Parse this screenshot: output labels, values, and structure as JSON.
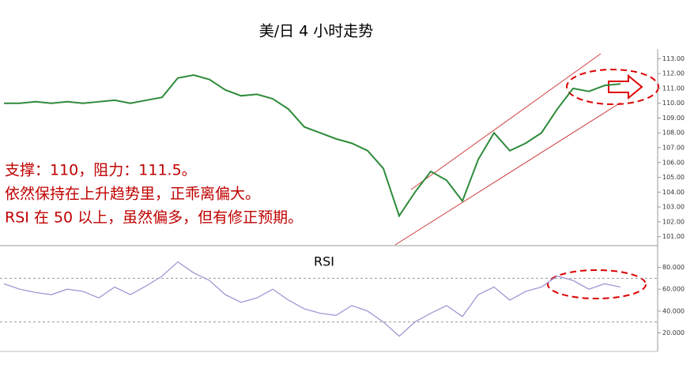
{
  "chart_data": [
    {
      "type": "line",
      "title": "美/日 4 小时走势",
      "annotations": [
        "支撑：110，阻力：111.5。",
        "依然保持在上升趋势里，正乖离偏大。",
        "RSI 在 50 以上，虽然偏多，但有修正预期。"
      ],
      "values": [
        110.0,
        110.0,
        110.1,
        110.0,
        110.1,
        110.0,
        110.1,
        110.2,
        110.0,
        110.2,
        110.4,
        111.7,
        111.9,
        111.6,
        110.9,
        110.5,
        110.6,
        110.3,
        109.6,
        108.4,
        108.0,
        107.6,
        107.3,
        106.8,
        105.6,
        102.4,
        104.0,
        105.4,
        104.8,
        103.4,
        106.2,
        108.0,
        106.8,
        107.3,
        108.0,
        109.6,
        111.0,
        110.8,
        111.2,
        111.3
      ],
      "color": "#2e8b3a",
      "ylim": [
        100.5,
        113.5
      ],
      "yticks": [
        {
          "value": 101,
          "label": "101.00"
        },
        {
          "value": 102,
          "label": "102.00"
        },
        {
          "value": 103,
          "label": "103.00"
        },
        {
          "value": 104,
          "label": "104.00"
        },
        {
          "value": 105,
          "label": "105.00"
        },
        {
          "value": 106,
          "label": "106.00"
        },
        {
          "value": 107,
          "label": "107.00"
        },
        {
          "value": 108,
          "label": "108.00"
        },
        {
          "value": 109,
          "label": "109.00"
        },
        {
          "value": 110,
          "label": "110.00"
        },
        {
          "value": 111,
          "label": "111.00"
        },
        {
          "value": 112,
          "label": "112.00"
        },
        {
          "value": 113,
          "label": "113.00"
        }
      ]
    },
    {
      "type": "line",
      "title": "RSI",
      "values": [
        65,
        60,
        57,
        55,
        60,
        58,
        52,
        62,
        55,
        63,
        72,
        85,
        75,
        68,
        55,
        48,
        52,
        60,
        50,
        42,
        38,
        36,
        45,
        40,
        30,
        17,
        30,
        38,
        45,
        35,
        55,
        62,
        50,
        58,
        62,
        72,
        68,
        60,
        65,
        62
      ],
      "color": "#9b8fd0",
      "ylim": [
        3,
        97
      ],
      "yticks": [
        {
          "value": 20,
          "label": "20.000"
        },
        {
          "value": 40,
          "label": "40.000"
        },
        {
          "value": 60,
          "label": "60.000"
        },
        {
          "value": 80,
          "label": "80.000"
        }
      ],
      "levels": [
        70,
        30
      ]
    }
  ]
}
